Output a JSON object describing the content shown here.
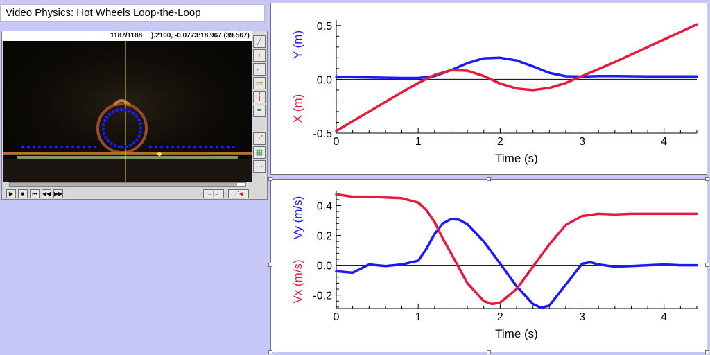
{
  "title": "Video Physics:  Hot Wheels Loop-the-Loop",
  "video": {
    "frame_counter": "1187/1188",
    "coord_readout": ").2100, -0.0773:18.967 (39.567)",
    "tools": [
      "line-tool-icon",
      "origin-tool-icon",
      "axes-tool-icon",
      "scale-tool-icon",
      "ruler-tool-icon",
      "settings-tool-icon",
      "add-point-icon",
      "graph-view-icon",
      "point-trail-icon"
    ],
    "transport": [
      "play-icon",
      "stop-icon",
      "first-frame-icon",
      "step-back-icon",
      "step-forward-icon"
    ],
    "colors": {
      "track_ring": "#a0523a",
      "points": "#1a1aff",
      "crosshair": "#e8d85a",
      "ground": "#c86a20"
    }
  },
  "chart_data": [
    {
      "type": "line",
      "xlabel": "Time (s)",
      "ylabel_series": [
        "Y (m)",
        "X (m)"
      ],
      "xlim": [
        0,
        4.4
      ],
      "ylim": [
        -0.5,
        0.55
      ],
      "xticks": [
        "0",
        "1",
        "2",
        "3",
        "4"
      ],
      "yticks": [
        "-0.5",
        "0.0",
        "0.5"
      ],
      "ytick_values": [
        -0.5,
        0,
        0.5
      ],
      "grid": false,
      "series": [
        {
          "name": "Y (m)",
          "color": "#1a1aff",
          "x": [
            0,
            0.2,
            0.4,
            0.6,
            0.8,
            1.0,
            1.2,
            1.4,
            1.6,
            1.8,
            2.0,
            2.2,
            2.4,
            2.6,
            2.8,
            3.0,
            3.2,
            3.4,
            3.6,
            3.8,
            4.0,
            4.2,
            4.4
          ],
          "values": [
            0.025,
            0.02,
            0.018,
            0.015,
            0.012,
            0.012,
            0.03,
            0.085,
            0.15,
            0.195,
            0.2,
            0.175,
            0.12,
            0.06,
            0.028,
            0.025,
            0.03,
            0.03,
            0.028,
            0.027,
            0.027,
            0.027,
            0.027
          ]
        },
        {
          "name": "X (m)",
          "color": "#e8193c",
          "x": [
            0,
            0.2,
            0.4,
            0.6,
            0.8,
            1.0,
            1.2,
            1.4,
            1.6,
            1.8,
            2.0,
            2.2,
            2.4,
            2.6,
            2.8,
            3.0,
            3.2,
            3.4,
            3.6,
            3.8,
            4.0,
            4.2,
            4.4
          ],
          "values": [
            -0.48,
            -0.39,
            -0.3,
            -0.21,
            -0.12,
            -0.035,
            0.04,
            0.085,
            0.08,
            0.03,
            -0.04,
            -0.085,
            -0.1,
            -0.08,
            -0.035,
            0.03,
            0.095,
            0.16,
            0.23,
            0.3,
            0.37,
            0.44,
            0.51
          ]
        }
      ]
    },
    {
      "type": "line",
      "xlabel": "Time (s)",
      "ylabel_series": [
        "Vy (m/s)",
        "Vx (m/s)"
      ],
      "xlim": [
        0,
        4.4
      ],
      "ylim": [
        -0.29,
        0.5
      ],
      "xticks": [
        "0",
        "1",
        "2",
        "3",
        "4"
      ],
      "yticks": [
        "-0.2",
        "0.0",
        "0.2",
        "0.4"
      ],
      "ytick_values": [
        -0.2,
        0,
        0.2,
        0.4
      ],
      "grid": false,
      "series": [
        {
          "name": "Vy (m/s)",
          "color": "#1a1aff",
          "x": [
            0,
            0.2,
            0.4,
            0.6,
            0.8,
            1.0,
            1.1,
            1.2,
            1.3,
            1.4,
            1.5,
            1.6,
            1.8,
            2.0,
            2.2,
            2.4,
            2.5,
            2.6,
            2.8,
            3.0,
            3.1,
            3.2,
            3.4,
            3.6,
            3.8,
            4.0,
            4.2,
            4.4
          ],
          "values": [
            -0.04,
            -0.05,
            0.005,
            -0.005,
            0.005,
            0.03,
            0.11,
            0.21,
            0.28,
            0.31,
            0.305,
            0.275,
            0.16,
            0.01,
            -0.14,
            -0.26,
            -0.285,
            -0.27,
            -0.13,
            0.01,
            0.02,
            0.005,
            -0.01,
            -0.005,
            0,
            0.005,
            0,
            0.0
          ]
        },
        {
          "name": "Vx (m/s)",
          "color": "#e8193c",
          "x": [
            0,
            0.2,
            0.4,
            0.6,
            0.8,
            1.0,
            1.1,
            1.2,
            1.3,
            1.4,
            1.5,
            1.6,
            1.8,
            1.9,
            2.0,
            2.2,
            2.4,
            2.6,
            2.8,
            3.0,
            3.2,
            3.4,
            3.6,
            3.8,
            4.0,
            4.2,
            4.4
          ],
          "values": [
            0.475,
            0.46,
            0.46,
            0.455,
            0.45,
            0.42,
            0.37,
            0.29,
            0.18,
            0.08,
            -0.02,
            -0.12,
            -0.24,
            -0.26,
            -0.25,
            -0.16,
            -0.01,
            0.14,
            0.27,
            0.33,
            0.345,
            0.34,
            0.345,
            0.345,
            0.345,
            0.345,
            0.345
          ]
        }
      ]
    }
  ]
}
